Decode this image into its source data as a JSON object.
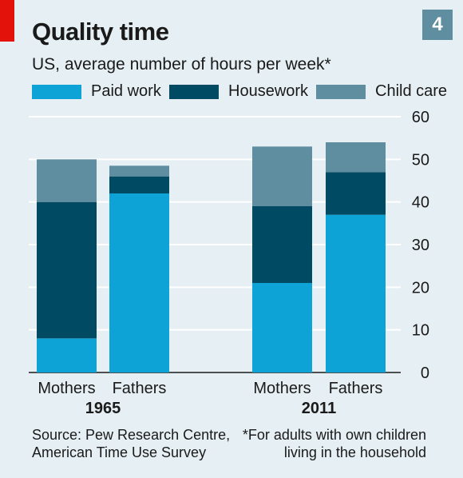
{
  "header": {
    "title": "Quality time",
    "badge": "4",
    "subtitle": "US, average number of hours per week*"
  },
  "footer": {
    "source_line1": "Source: Pew Research Centre,",
    "source_line2": "American Time Use Survey",
    "note_line1": "*For adults with own children",
    "note_line2": "living in the household"
  },
  "colors": {
    "paid_work": "#0ea3d6",
    "housework": "#004a63",
    "child_care": "#5e8ea0",
    "background": "#e6eff3",
    "brand_red": "#e3120b"
  },
  "chart_data": {
    "type": "bar",
    "stacked": true,
    "title": "Quality time",
    "subtitle": "US, average number of hours per week*",
    "legend_placement": "top",
    "ylim": [
      0,
      60
    ],
    "yticks": [
      0,
      10,
      20,
      30,
      40,
      50,
      60
    ],
    "y_axis_side": "right",
    "grid": true,
    "groups": [
      "1965",
      "2011"
    ],
    "categories": [
      "Mothers",
      "Fathers",
      "Mothers",
      "Fathers"
    ],
    "category_group": [
      0,
      0,
      1,
      1
    ],
    "series": [
      {
        "name": "Paid work",
        "values": [
          8,
          42,
          21,
          37
        ]
      },
      {
        "name": "Housework",
        "values": [
          32,
          4,
          18,
          10
        ]
      },
      {
        "name": "Child care",
        "values": [
          10,
          2.5,
          14,
          7
        ]
      }
    ]
  }
}
